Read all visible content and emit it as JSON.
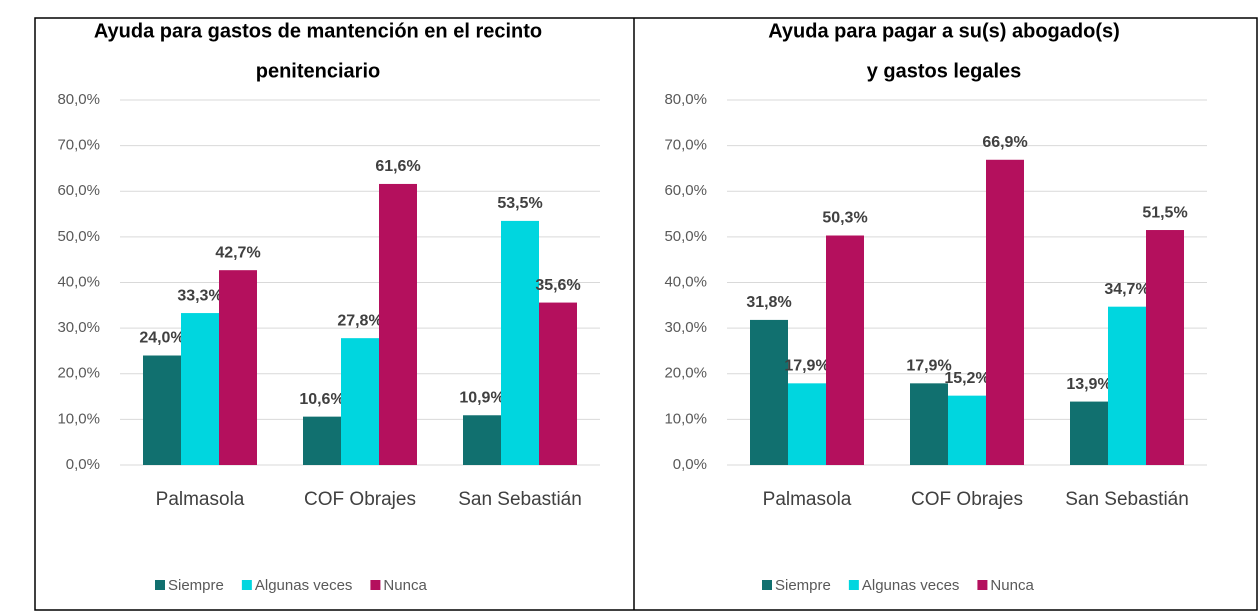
{
  "chart_data": [
    {
      "type": "bar",
      "title": [
        "Ayuda para gastos de mantención en el recinto",
        "penitenciario"
      ],
      "categories": [
        "Palmasola",
        "COF Obrajes",
        "San Sebastián"
      ],
      "series": [
        {
          "name": "Siempre",
          "color": "#11706f",
          "values": [
            24.0,
            10.6,
            10.9
          ],
          "value_labels": [
            "24,0%",
            "10,6%",
            "10,9%"
          ]
        },
        {
          "name": "Algunas veces",
          "color": "#00d6df",
          "values": [
            33.3,
            27.8,
            53.5
          ],
          "value_labels": [
            "33,3%",
            "27,8%",
            "53,5%"
          ]
        },
        {
          "name": "Nunca",
          "color": "#b4105d",
          "values": [
            42.7,
            61.6,
            35.6
          ],
          "value_labels": [
            "42,7%",
            "61,6%",
            "35,6%"
          ]
        }
      ],
      "ylim": [
        0,
        80
      ],
      "yticks": [
        {
          "value": 0,
          "label": "0,0%"
        },
        {
          "value": 10,
          "label": "10,0%"
        },
        {
          "value": 20,
          "label": "20,0%"
        },
        {
          "value": 30,
          "label": "30,0%"
        },
        {
          "value": 40,
          "label": "40,0%"
        },
        {
          "value": 50,
          "label": "50,0%"
        },
        {
          "value": 60,
          "label": "60,0%"
        },
        {
          "value": 70,
          "label": "70,0%"
        },
        {
          "value": 80,
          "label": "80,0%"
        }
      ],
      "grid": true,
      "legend": "bottom"
    },
    {
      "type": "bar",
      "title": [
        "Ayuda para pagar a su(s) abogado(s)",
        "y gastos legales"
      ],
      "categories": [
        "Palmasola",
        "COF Obrajes",
        "San Sebastián"
      ],
      "series": [
        {
          "name": "Siempre",
          "color": "#11706f",
          "values": [
            31.8,
            17.9,
            13.9
          ],
          "value_labels": [
            "31,8%",
            "17,9%",
            "13,9%"
          ]
        },
        {
          "name": "Algunas veces",
          "color": "#00d6df",
          "values": [
            17.9,
            15.2,
            34.7
          ],
          "value_labels": [
            "17,9%",
            "15,2%",
            "34,7%"
          ]
        },
        {
          "name": "Nunca",
          "color": "#b4105d",
          "values": [
            50.3,
            66.9,
            51.5
          ],
          "value_labels": [
            "50,3%",
            "66,9%",
            "51,5%"
          ]
        }
      ],
      "ylim": [
        0,
        80
      ],
      "yticks": [
        {
          "value": 0,
          "label": "0,0%"
        },
        {
          "value": 10,
          "label": "10,0%"
        },
        {
          "value": 20,
          "label": "20,0%"
        },
        {
          "value": 30,
          "label": "30,0%"
        },
        {
          "value": 40,
          "label": "40,0%"
        },
        {
          "value": 50,
          "label": "50,0%"
        },
        {
          "value": 60,
          "label": "60,0%"
        },
        {
          "value": 70,
          "label": "70,0%"
        },
        {
          "value": 80,
          "label": "80,0%"
        }
      ],
      "grid": true,
      "legend": "bottom"
    }
  ]
}
